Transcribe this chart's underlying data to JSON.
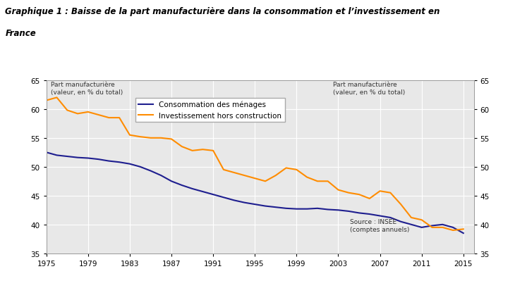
{
  "title_line1": "Graphique 1 : Baisse de la part manufacturière dans la consommation et l’investissement en",
  "title_line2": "France",
  "ylabel_left": "Part manufacturière\n(valeur, en % du total)",
  "ylabel_right": "Part manufacturière\n(valeur, en % du total)",
  "source_text": "Source : INSEE\n(comptes annuels)",
  "ylim": [
    35,
    65
  ],
  "yticks": [
    35,
    40,
    45,
    50,
    55,
    60,
    65
  ],
  "xlim": [
    1975,
    2016
  ],
  "xticks": [
    1975,
    1979,
    1983,
    1987,
    1991,
    1995,
    1999,
    2003,
    2007,
    2011,
    2015
  ],
  "legend_consommation": "Consommation des ménages",
  "legend_investissement": "Investissement hors construction",
  "color_consommation": "#1e1e8f",
  "color_investissement": "#ff8c00",
  "plot_bg_color": "#e8e8e8",
  "fig_bg_color": "#ffffff",
  "consommation_years": [
    1975,
    1976,
    1977,
    1978,
    1979,
    1980,
    1981,
    1982,
    1983,
    1984,
    1985,
    1986,
    1987,
    1988,
    1989,
    1990,
    1991,
    1992,
    1993,
    1994,
    1995,
    1996,
    1997,
    1998,
    1999,
    2000,
    2001,
    2002,
    2003,
    2004,
    2005,
    2006,
    2007,
    2008,
    2009,
    2010,
    2011,
    2012,
    2013,
    2014,
    2015
  ],
  "consommation_values": [
    52.5,
    52.0,
    51.8,
    51.6,
    51.5,
    51.3,
    51.0,
    50.8,
    50.5,
    50.0,
    49.3,
    48.5,
    47.5,
    46.8,
    46.2,
    45.7,
    45.2,
    44.7,
    44.2,
    43.8,
    43.5,
    43.2,
    43.0,
    42.8,
    42.7,
    42.7,
    42.8,
    42.6,
    42.5,
    42.3,
    42.0,
    41.8,
    41.5,
    41.2,
    40.5,
    40.0,
    39.5,
    39.8,
    40.0,
    39.5,
    38.5
  ],
  "investissement_years": [
    1975,
    1976,
    1977,
    1978,
    1979,
    1980,
    1981,
    1982,
    1983,
    1984,
    1985,
    1986,
    1987,
    1988,
    1989,
    1990,
    1991,
    1992,
    1993,
    1994,
    1995,
    1996,
    1997,
    1998,
    1999,
    2000,
    2001,
    2002,
    2003,
    2004,
    2005,
    2006,
    2007,
    2008,
    2009,
    2010,
    2011,
    2012,
    2013,
    2014,
    2015
  ],
  "investissement_values": [
    61.5,
    62.0,
    59.8,
    59.2,
    59.5,
    59.0,
    58.5,
    58.5,
    55.5,
    55.2,
    55.0,
    55.0,
    54.8,
    53.5,
    52.8,
    53.0,
    52.8,
    49.5,
    49.0,
    48.5,
    48.0,
    47.5,
    48.5,
    49.8,
    49.5,
    48.2,
    47.5,
    47.5,
    46.0,
    45.5,
    45.2,
    44.5,
    45.8,
    45.5,
    43.5,
    41.2,
    40.8,
    39.5,
    39.5,
    39.0,
    39.2
  ]
}
